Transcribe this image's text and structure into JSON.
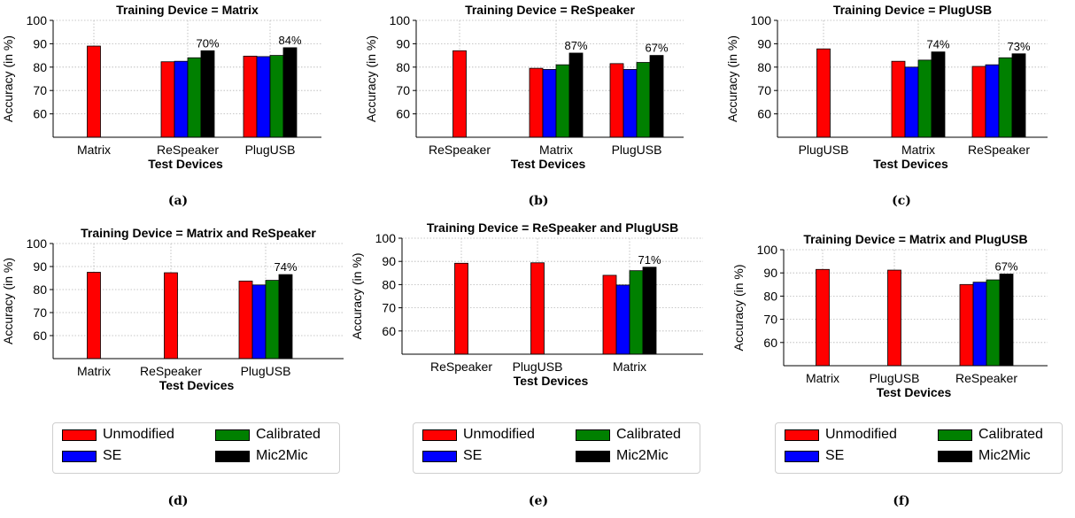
{
  "colors": {
    "Unmodified": "#ff0000",
    "SE": "#0000ff",
    "Calibrated": "#008000",
    "Mic2Mic": "#000000"
  },
  "legend": {
    "items": [
      "Unmodified",
      "SE",
      "Calibrated",
      "Mic2Mic"
    ]
  },
  "captions": [
    "(a)",
    "(b)",
    "(c)",
    "(d)",
    "(e)",
    "(f)"
  ],
  "chart_data": [
    {
      "type": "bar",
      "title": "Training Device = Matrix",
      "xlabel": "Test Devices",
      "ylabel": "Accuracy (in %)",
      "ylim": [
        50,
        100
      ],
      "yticks": [
        60,
        70,
        80,
        90,
        100
      ],
      "grid": true,
      "categories": [
        "Matrix",
        "ReSpeaker",
        "PlugUSB"
      ],
      "groups": [
        {
          "category": "Matrix",
          "bars": [
            {
              "series": "Unmodified",
              "value": 89
            }
          ]
        },
        {
          "category": "ReSpeaker",
          "bars": [
            {
              "series": "Unmodified",
              "value": 82.3
            },
            {
              "series": "SE",
              "value": 82.5
            },
            {
              "series": "Calibrated",
              "value": 84
            },
            {
              "series": "Mic2Mic",
              "value": 87
            }
          ],
          "annotation": "70%"
        },
        {
          "category": "PlugUSB",
          "bars": [
            {
              "series": "Unmodified",
              "value": 84.7
            },
            {
              "series": "SE",
              "value": 84.5
            },
            {
              "series": "Calibrated",
              "value": 85
            },
            {
              "series": "Mic2Mic",
              "value": 88.3
            }
          ],
          "annotation": "84%"
        }
      ]
    },
    {
      "type": "bar",
      "title": "Training Device = ReSpeaker",
      "xlabel": "Test Devices",
      "ylabel": "Accuracy (in %)",
      "ylim": [
        50,
        100
      ],
      "yticks": [
        60,
        70,
        80,
        90,
        100
      ],
      "grid": true,
      "categories": [
        "ReSpeaker",
        "Matrix",
        "PlugUSB"
      ],
      "groups": [
        {
          "category": "ReSpeaker",
          "bars": [
            {
              "series": "Unmodified",
              "value": 87
            }
          ]
        },
        {
          "category": "Matrix",
          "bars": [
            {
              "series": "Unmodified",
              "value": 79.5
            },
            {
              "series": "SE",
              "value": 79
            },
            {
              "series": "Calibrated",
              "value": 81
            },
            {
              "series": "Mic2Mic",
              "value": 86
            }
          ],
          "annotation": "87%"
        },
        {
          "category": "PlugUSB",
          "bars": [
            {
              "series": "Unmodified",
              "value": 81.5
            },
            {
              "series": "SE",
              "value": 79
            },
            {
              "series": "Calibrated",
              "value": 82
            },
            {
              "series": "Mic2Mic",
              "value": 85
            }
          ],
          "annotation": "67%"
        }
      ]
    },
    {
      "type": "bar",
      "title": "Training Device = PlugUSB",
      "xlabel": "Test Devices",
      "ylabel": "Accuracy (in %)",
      "ylim": [
        50,
        100
      ],
      "yticks": [
        60,
        70,
        80,
        90,
        100
      ],
      "grid": true,
      "categories": [
        "PlugUSB",
        "Matrix",
        "ReSpeaker"
      ],
      "groups": [
        {
          "category": "PlugUSB",
          "bars": [
            {
              "series": "Unmodified",
              "value": 87.8
            }
          ]
        },
        {
          "category": "Matrix",
          "bars": [
            {
              "series": "Unmodified",
              "value": 82.5
            },
            {
              "series": "SE",
              "value": 80
            },
            {
              "series": "Calibrated",
              "value": 83
            },
            {
              "series": "Mic2Mic",
              "value": 86.5
            }
          ],
          "annotation": "74%"
        },
        {
          "category": "ReSpeaker",
          "bars": [
            {
              "series": "Unmodified",
              "value": 80.3
            },
            {
              "series": "SE",
              "value": 81
            },
            {
              "series": "Calibrated",
              "value": 84
            },
            {
              "series": "Mic2Mic",
              "value": 85.7
            }
          ],
          "annotation": "73%"
        }
      ]
    },
    {
      "type": "bar",
      "title": "Training Device = Matrix and ReSpeaker",
      "xlabel": "Test Devices",
      "ylabel": "Accuracy (in %)",
      "ylim": [
        50,
        100
      ],
      "yticks": [
        60,
        70,
        80,
        90,
        100
      ],
      "grid": true,
      "categories": [
        "Matrix",
        "ReSpeaker",
        "PlugUSB"
      ],
      "groups": [
        {
          "category": "Matrix",
          "bars": [
            {
              "series": "Unmodified",
              "value": 87.5
            }
          ]
        },
        {
          "category": "ReSpeaker",
          "bars": [
            {
              "series": "Unmodified",
              "value": 87.3
            }
          ]
        },
        {
          "category": "PlugUSB",
          "bars": [
            {
              "series": "Unmodified",
              "value": 83.7
            },
            {
              "series": "SE",
              "value": 82
            },
            {
              "series": "Calibrated",
              "value": 84
            },
            {
              "series": "Mic2Mic",
              "value": 86.5
            }
          ],
          "annotation": "74%"
        }
      ]
    },
    {
      "type": "bar",
      "title": "Training Device = ReSpeaker and PlugUSB",
      "xlabel": "Test Devices",
      "ylabel": "Accuracy (in %)",
      "ylim": [
        50,
        100
      ],
      "yticks": [
        60,
        70,
        80,
        90,
        100
      ],
      "grid": true,
      "categories": [
        "ReSpeaker",
        "PlugUSB",
        "Matrix"
      ],
      "groups": [
        {
          "category": "ReSpeaker",
          "bars": [
            {
              "series": "Unmodified",
              "value": 89.2
            }
          ]
        },
        {
          "category": "PlugUSB",
          "bars": [
            {
              "series": "Unmodified",
              "value": 89.4
            }
          ]
        },
        {
          "category": "Matrix",
          "bars": [
            {
              "series": "Unmodified",
              "value": 84
            },
            {
              "series": "SE",
              "value": 79.8
            },
            {
              "series": "Calibrated",
              "value": 86
            },
            {
              "series": "Mic2Mic",
              "value": 87.5
            }
          ],
          "annotation": "71%"
        }
      ]
    },
    {
      "type": "bar",
      "title": "Training Device = Matrix and PlugUSB",
      "xlabel": "Test Devices",
      "ylabel": "Accuracy (in %)",
      "ylim": [
        50,
        100
      ],
      "yticks": [
        60,
        70,
        80,
        90,
        100
      ],
      "grid": true,
      "categories": [
        "Matrix",
        "PlugUSB",
        "ReSpeaker"
      ],
      "groups": [
        {
          "category": "Matrix",
          "bars": [
            {
              "series": "Unmodified",
              "value": 91.5
            }
          ]
        },
        {
          "category": "PlugUSB",
          "bars": [
            {
              "series": "Unmodified",
              "value": 91.2
            }
          ]
        },
        {
          "category": "ReSpeaker",
          "bars": [
            {
              "series": "Unmodified",
              "value": 85
            },
            {
              "series": "SE",
              "value": 86
            },
            {
              "series": "Calibrated",
              "value": 87
            },
            {
              "series": "Mic2Mic",
              "value": 89.5
            }
          ],
          "annotation": "67%"
        }
      ]
    }
  ]
}
